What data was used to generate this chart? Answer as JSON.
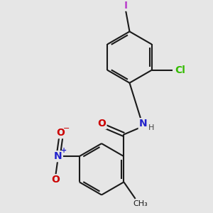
{
  "background_color": "#e6e6e6",
  "bond_color": "#1a1a1a",
  "bond_width": 1.5,
  "atom_labels": {
    "O_carbonyl": {
      "text": "O",
      "color": "#cc0000",
      "fontsize": 10
    },
    "N_amide": {
      "text": "N",
      "color": "#2222cc",
      "fontsize": 10
    },
    "H_amide": {
      "text": "H",
      "color": "#444444",
      "fontsize": 8
    },
    "Cl": {
      "text": "Cl",
      "color": "#33bb00",
      "fontsize": 10
    },
    "I": {
      "text": "I",
      "color": "#bb44cc",
      "fontsize": 10
    },
    "N_nitro": {
      "text": "N",
      "color": "#2222cc",
      "fontsize": 10
    },
    "O_nitro1": {
      "text": "O",
      "color": "#cc0000",
      "fontsize": 10
    },
    "O_nitro2": {
      "text": "O",
      "color": "#cc0000",
      "fontsize": 10
    },
    "plus": {
      "text": "+",
      "color": "#2222cc",
      "fontsize": 7
    },
    "minus": {
      "text": "−",
      "color": "#cc0000",
      "fontsize": 8
    },
    "CH3": {
      "text": "CH₃",
      "color": "#1a1a1a",
      "fontsize": 8
    }
  },
  "xlim": [
    -2.5,
    3.0
  ],
  "ylim": [
    -3.2,
    3.0
  ],
  "figsize": [
    3.0,
    3.0
  ],
  "dpi": 100
}
